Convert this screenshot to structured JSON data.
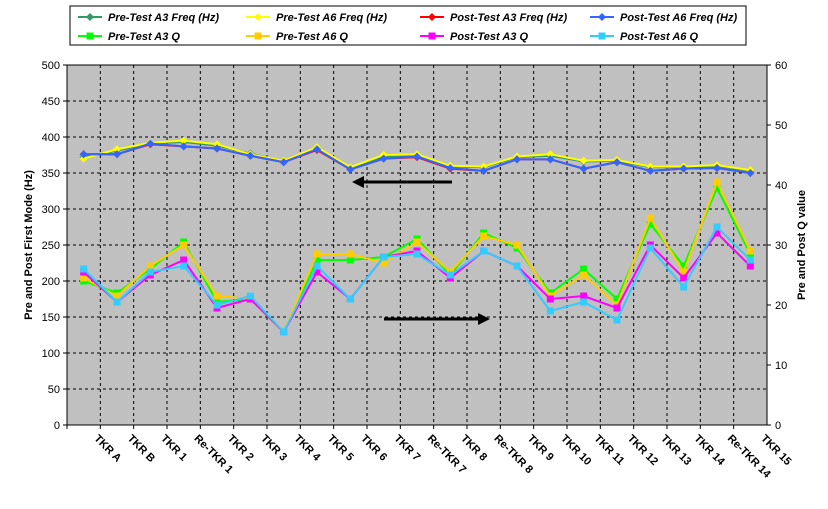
{
  "chart_data": {
    "type": "line",
    "categories": [
      "TKR A",
      "TKR B",
      "TKR 1",
      "Re-TKR 1",
      "TKR 2",
      "TKR 3",
      "TKR 4",
      "TKR 5",
      "TKR 6",
      "TKR 7",
      "Re-TKR 7",
      "TKR 8",
      "Re-TKR 8",
      "TKR 9",
      "TKR 10",
      "TKR 11",
      "TKR 12",
      "TKR 13",
      "TKR 14",
      "Re-TKR 14",
      "TKR 15"
    ],
    "ylabel": "Pre and Post First Mode (Hz)",
    "y2label": "Pre and Post Q value",
    "ylim": [
      0,
      500
    ],
    "yticks": [
      0,
      50,
      100,
      150,
      200,
      250,
      300,
      350,
      400,
      450,
      500
    ],
    "y2lim": [
      0,
      60
    ],
    "y2ticks": [
      0,
      10,
      20,
      30,
      40,
      50,
      60
    ],
    "grid": true,
    "legend_position": "top",
    "background_color": "#c0c0c0",
    "series": [
      {
        "name": "Pre-Test A3 Freq (Hz)",
        "axis": "left",
        "color": "#339966",
        "marker": "diamond",
        "values": [
          372,
          381,
          391,
          393,
          388,
          377,
          366,
          384,
          357,
          373,
          375,
          359,
          358,
          372,
          374,
          366,
          367,
          358,
          358,
          360,
          353
        ]
      },
      {
        "name": "Pre-Test A6 Freq (Hz)",
        "axis": "left",
        "color": "#ffff00",
        "marker": "diamond",
        "values": [
          370,
          383,
          392,
          395,
          390,
          376,
          367,
          386,
          358,
          375,
          376,
          360,
          359,
          373,
          376,
          367,
          368,
          359,
          359,
          361,
          354
        ]
      },
      {
        "name": "Post-Test A3 Freq (Hz)",
        "axis": "left",
        "color": "#ff0000",
        "marker": "diamond",
        "values": [
          376,
          376,
          390,
          387,
          384,
          374,
          365,
          382,
          355,
          370,
          372,
          356,
          353,
          369,
          369,
          356,
          365,
          353,
          356,
          357,
          350
        ]
      },
      {
        "name": "Post-Test A6 Freq (Hz)",
        "axis": "left",
        "color": "#3366ff",
        "marker": "diamond",
        "values": [
          376,
          376,
          391,
          387,
          384,
          374,
          365,
          383,
          355,
          370,
          373,
          357,
          353,
          369,
          369,
          356,
          365,
          353,
          356,
          357,
          350
        ]
      },
      {
        "name": "Pre-Test A3 Q",
        "axis": "right",
        "color": "#00ff00",
        "marker": "square",
        "values": [
          24,
          22,
          26,
          30.5,
          20.5,
          21,
          15.5,
          27.5,
          27.5,
          28,
          31,
          25,
          32,
          29.5,
          22,
          26,
          21,
          33.5,
          26.5,
          39.5,
          28.5
        ]
      },
      {
        "name": "Pre-Test A6 Q",
        "axis": "right",
        "color": "#ffcc00",
        "marker": "square",
        "values": [
          24.5,
          21.5,
          26.5,
          30,
          21.5,
          21,
          15.5,
          28.5,
          28.5,
          27,
          30.5,
          25.5,
          31.5,
          30,
          21.5,
          25,
          20,
          34.5,
          25.5,
          40.5,
          29
        ]
      },
      {
        "name": "Post-Test A3 Q",
        "axis": "right",
        "color": "#ff00ff",
        "marker": "square",
        "values": [
          25.5,
          20.5,
          25,
          27.5,
          19.5,
          21,
          15.5,
          25.5,
          21,
          28,
          29,
          24.5,
          29,
          26.5,
          21,
          21.5,
          19.5,
          30,
          24.5,
          32,
          26.5
        ]
      },
      {
        "name": "Post-Test A6 Q",
        "axis": "right",
        "color": "#33ccff",
        "marker": "square",
        "values": [
          26,
          20.5,
          25.5,
          26.5,
          20,
          21.5,
          15.5,
          26.5,
          21,
          28,
          28.5,
          25,
          29,
          26.5,
          19,
          20.5,
          17.5,
          29.5,
          23,
          33,
          27.5
        ]
      }
    ]
  }
}
